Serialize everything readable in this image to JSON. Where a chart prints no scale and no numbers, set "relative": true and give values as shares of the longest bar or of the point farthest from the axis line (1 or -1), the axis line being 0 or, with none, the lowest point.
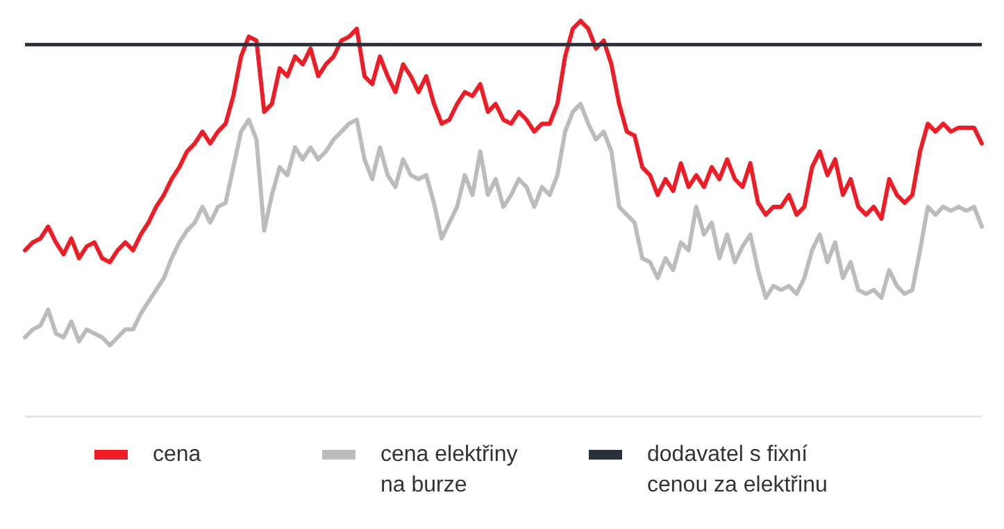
{
  "chart_data": {
    "type": "line",
    "relative": true,
    "legend": "bottom",
    "line_style": "solid",
    "marker": "none",
    "categories": [
      null,
      null,
      null,
      null,
      null,
      null,
      null,
      null,
      null,
      null,
      null,
      null,
      null,
      null,
      null,
      null,
      null,
      null,
      null,
      null,
      null,
      null,
      null,
      null,
      null,
      null,
      null,
      null,
      null,
      null,
      null,
      null,
      null,
      null,
      null,
      null,
      null,
      null,
      null,
      null,
      null,
      null,
      null,
      null,
      null,
      null,
      null,
      null,
      null,
      null,
      null,
      null,
      null,
      null,
      null,
      null,
      null,
      null,
      null,
      null,
      null,
      null,
      null,
      null,
      null,
      null,
      null,
      null,
      null,
      null,
      null,
      null,
      null,
      null,
      null,
      null,
      null,
      null,
      null,
      null,
      null,
      null,
      null,
      null,
      null,
      null,
      null,
      null,
      null,
      null,
      null,
      null,
      null,
      null,
      null,
      null,
      null,
      null,
      null,
      null,
      null,
      null,
      null,
      null,
      null,
      null,
      null,
      null,
      null,
      null,
      null,
      null,
      null,
      null,
      null,
      null,
      null,
      null,
      null,
      null,
      null,
      null,
      null,
      null,
      null
    ],
    "series": [
      {
        "name": "cena",
        "color": "#ee1c25",
        "values": [
          0.42,
          0.44,
          0.45,
          0.48,
          0.44,
          0.41,
          0.45,
          0.4,
          0.43,
          0.44,
          0.4,
          0.39,
          0.42,
          0.44,
          0.42,
          0.46,
          0.49,
          0.53,
          0.56,
          0.6,
          0.63,
          0.67,
          0.69,
          0.72,
          0.69,
          0.72,
          0.74,
          0.81,
          0.91,
          0.96,
          0.95,
          0.77,
          0.79,
          0.88,
          0.86,
          0.91,
          0.89,
          0.93,
          0.86,
          0.89,
          0.91,
          0.95,
          0.96,
          0.98,
          0.86,
          0.84,
          0.91,
          0.86,
          0.82,
          0.89,
          0.86,
          0.82,
          0.86,
          0.79,
          0.74,
          0.75,
          0.79,
          0.82,
          0.81,
          0.84,
          0.77,
          0.79,
          0.75,
          0.74,
          0.77,
          0.75,
          0.72,
          0.74,
          0.74,
          0.79,
          0.91,
          0.98,
          1,
          0.98,
          0.93,
          0.95,
          0.89,
          0.79,
          0.72,
          0.71,
          0.63,
          0.61,
          0.56,
          0.6,
          0.57,
          0.64,
          0.58,
          0.61,
          0.58,
          0.63,
          0.6,
          0.65,
          0.6,
          0.58,
          0.64,
          0.54,
          0.51,
          0.53,
          0.53,
          0.56,
          0.51,
          0.53,
          0.63,
          0.67,
          0.61,
          0.65,
          0.56,
          0.6,
          0.53,
          0.51,
          0.53,
          0.5,
          0.6,
          0.56,
          0.54,
          0.56,
          0.67,
          0.74,
          0.72,
          0.74,
          0.72,
          0.73,
          0.73,
          0.73,
          0.69
        ]
      },
      {
        "name": "cena elektřiny\nna burze",
        "color": "#bcbcbc",
        "values": [
          0.2,
          0.22,
          0.23,
          0.27,
          0.21,
          0.2,
          0.24,
          0.19,
          0.22,
          0.21,
          0.2,
          0.18,
          0.2,
          0.22,
          0.22,
          0.26,
          0.29,
          0.32,
          0.35,
          0.4,
          0.44,
          0.47,
          0.49,
          0.53,
          0.49,
          0.53,
          0.54,
          0.63,
          0.72,
          0.75,
          0.7,
          0.47,
          0.56,
          0.63,
          0.61,
          0.68,
          0.65,
          0.68,
          0.65,
          0.67,
          0.7,
          0.72,
          0.74,
          0.75,
          0.65,
          0.6,
          0.68,
          0.61,
          0.58,
          0.65,
          0.61,
          0.6,
          0.61,
          0.54,
          0.45,
          0.49,
          0.53,
          0.61,
          0.56,
          0.67,
          0.56,
          0.6,
          0.53,
          0.56,
          0.6,
          0.58,
          0.53,
          0.58,
          0.56,
          0.61,
          0.72,
          0.77,
          0.79,
          0.74,
          0.7,
          0.72,
          0.67,
          0.53,
          0.51,
          0.49,
          0.4,
          0.39,
          0.35,
          0.4,
          0.37,
          0.44,
          0.42,
          0.53,
          0.46,
          0.49,
          0.4,
          0.46,
          0.39,
          0.43,
          0.46,
          0.37,
          0.3,
          0.33,
          0.32,
          0.33,
          0.31,
          0.35,
          0.42,
          0.46,
          0.39,
          0.44,
          0.35,
          0.39,
          0.32,
          0.31,
          0.32,
          0.3,
          0.37,
          0.33,
          0.31,
          0.32,
          0.42,
          0.53,
          0.51,
          0.53,
          0.52,
          0.53,
          0.52,
          0.53,
          0.48
        ]
      }
    ],
    "ref_lines": [
      {
        "axis": "y",
        "value": 0.94,
        "label": "dodavatel s fixní\ncenou za elektřinu",
        "color": "#2b2f3a",
        "line_style": "solid"
      }
    ]
  }
}
